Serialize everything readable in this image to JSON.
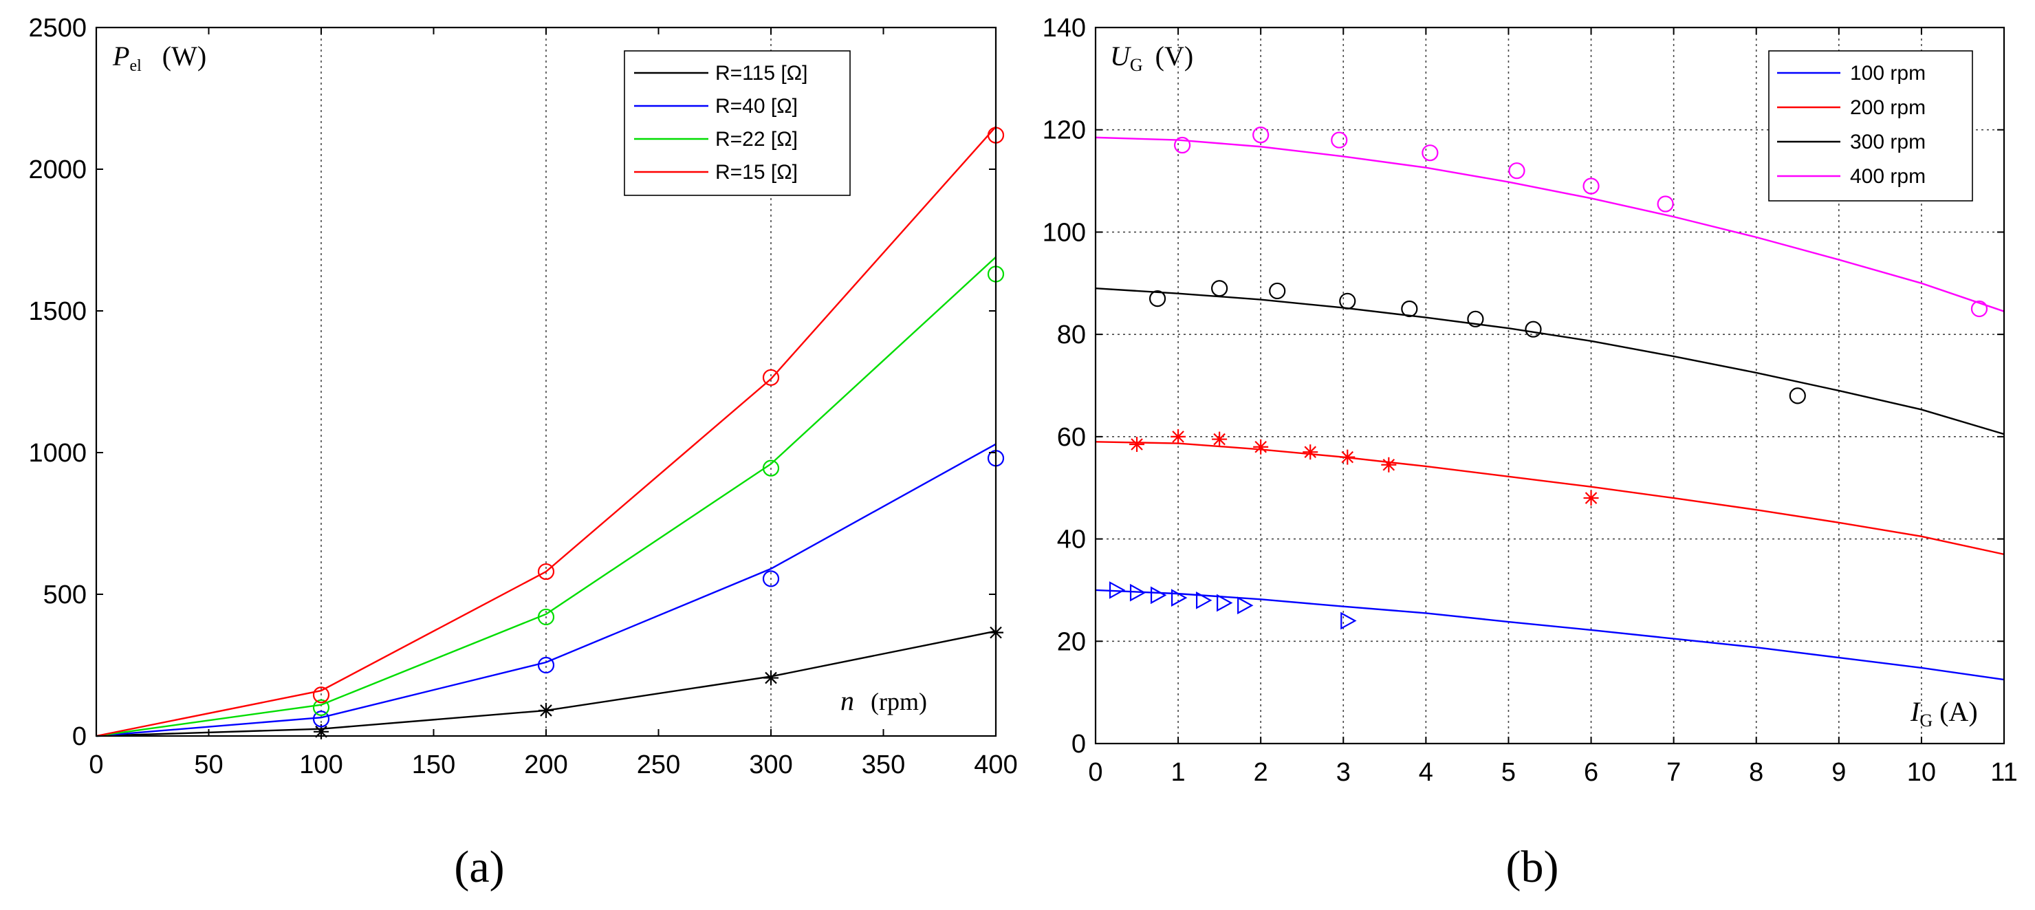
{
  "chart_data": [
    {
      "type": "line",
      "panel_label": "(a)",
      "y_label": {
        "symbol": "P",
        "subscript": "el",
        "unit": "(W)"
      },
      "x_label": {
        "symbol": "n",
        "unit": "(rpm)"
      },
      "xlim": [
        0,
        400
      ],
      "ylim": [
        0,
        2500
      ],
      "xticks": [
        0,
        50,
        100,
        150,
        200,
        250,
        300,
        350,
        400
      ],
      "yticks": [
        0,
        500,
        1000,
        1500,
        2000,
        2500
      ],
      "xgrid": [
        100,
        200,
        300
      ],
      "ygrid": [],
      "legend_position": "top-right",
      "series": [
        {
          "name": "R=115 [Ω]",
          "color": "#000000",
          "marker": "star",
          "line": {
            "x": [
              0,
              100,
              200,
              300,
              400
            ],
            "y": [
              0,
              25,
              90,
              210,
              370
            ]
          },
          "points": {
            "x": [
              100,
              200,
              300,
              400
            ],
            "y": [
              15,
              90,
              205,
              365
            ]
          }
        },
        {
          "name": "R=40 [Ω]",
          "color": "#0000ff",
          "marker": "circle",
          "line": {
            "x": [
              0,
              100,
              200,
              300,
              400
            ],
            "y": [
              0,
              65,
              260,
              590,
              1030
            ]
          },
          "points": {
            "x": [
              100,
              200,
              300,
              400
            ],
            "y": [
              60,
              250,
              555,
              980
            ]
          }
        },
        {
          "name": "R=22 [Ω]",
          "color": "#00dd00",
          "marker": "circle",
          "line": {
            "x": [
              0,
              100,
              200,
              300,
              400
            ],
            "y": [
              0,
              110,
              430,
              960,
              1690
            ]
          },
          "points": {
            "x": [
              100,
              200,
              300,
              400
            ],
            "y": [
              100,
              420,
              945,
              1630
            ]
          }
        },
        {
          "name": "R=15 [Ω]",
          "color": "#ff0000",
          "marker": "circle",
          "line": {
            "x": [
              0,
              100,
              200,
              300,
              400
            ],
            "y": [
              0,
              160,
              580,
              1260,
              2150
            ]
          },
          "points": {
            "x": [
              100,
              200,
              300,
              400
            ],
            "y": [
              145,
              580,
              1265,
              2120
            ]
          }
        }
      ]
    },
    {
      "type": "line",
      "panel_label": "(b)",
      "y_label": {
        "symbol": "U",
        "subscript": "G",
        "unit": "(V)"
      },
      "x_label": {
        "symbol": "I",
        "subscript": "G",
        "unit": "(A)"
      },
      "xlim": [
        0,
        11
      ],
      "ylim": [
        0,
        140
      ],
      "xticks": [
        0,
        1,
        2,
        3,
        4,
        5,
        6,
        7,
        8,
        9,
        10,
        11
      ],
      "yticks": [
        0,
        20,
        40,
        60,
        80,
        100,
        120,
        140
      ],
      "xgrid": [
        1,
        2,
        3,
        4,
        5,
        6,
        7,
        8,
        9,
        10
      ],
      "ygrid": [
        20,
        40,
        60,
        80,
        100,
        120
      ],
      "legend_position": "top-right",
      "series": [
        {
          "name": "100 rpm",
          "color": "#0000ff",
          "marker": "triangle-right",
          "line": {
            "x": [
              0,
              1,
              2,
              3,
              4,
              5,
              6,
              7,
              8,
              9,
              10,
              11
            ],
            "y": [
              30,
              29.3,
              28.2,
              26.8,
              25.5,
              23.8,
              22.2,
              20.5,
              18.8,
              16.8,
              14.8,
              12.5
            ]
          },
          "points": {
            "x": [
              0.25,
              0.5,
              0.75,
              1.0,
              1.3,
              1.55,
              1.8,
              3.05
            ],
            "y": [
              30,
              29.5,
              29,
              28.5,
              28,
              27.5,
              27,
              24
            ]
          }
        },
        {
          "name": "200 rpm",
          "color": "#ff0000",
          "marker": "star",
          "line": {
            "x": [
              0,
              1,
              2,
              3,
              4,
              5,
              6,
              7,
              8,
              9,
              10,
              11
            ],
            "y": [
              59,
              58.7,
              57.5,
              56,
              54.2,
              52.2,
              50.2,
              48,
              45.7,
              43.2,
              40.5,
              37
            ]
          },
          "points": {
            "x": [
              0.5,
              1.0,
              1.5,
              2.0,
              2.6,
              3.05,
              3.55,
              6.0
            ],
            "y": [
              58.5,
              60,
              59.5,
              58,
              57,
              56,
              54.5,
              48
            ]
          }
        },
        {
          "name": "300 rpm",
          "color": "#000000",
          "marker": "circle",
          "line": {
            "x": [
              0,
              1,
              2,
              3,
              4,
              5,
              6,
              7,
              8,
              9,
              10,
              11
            ],
            "y": [
              89,
              88,
              86.8,
              85.2,
              83.3,
              81.2,
              78.7,
              75.7,
              72.5,
              69,
              65.3,
              60.5
            ]
          },
          "points": {
            "x": [
              0.75,
              1.5,
              2.2,
              3.05,
              3.8,
              4.6,
              5.3,
              8.5
            ],
            "y": [
              87,
              89,
              88.5,
              86.5,
              85,
              83,
              81,
              68
            ]
          }
        },
        {
          "name": "400 rpm",
          "color": "#ff00ff",
          "marker": "circle",
          "line": {
            "x": [
              0,
              1,
              2,
              3,
              4,
              5,
              6,
              7,
              8,
              9,
              10,
              11
            ],
            "y": [
              118.5,
              118,
              116.7,
              114.8,
              112.6,
              109.8,
              106.6,
              103,
              99,
              94.6,
              90,
              84.5
            ]
          },
          "points": {
            "x": [
              1.05,
              2.0,
              2.95,
              4.05,
              5.1,
              6.0,
              6.9,
              10.7
            ],
            "y": [
              117,
              119,
              118,
              115.5,
              112,
              109,
              105.5,
              85
            ]
          }
        }
      ]
    }
  ]
}
